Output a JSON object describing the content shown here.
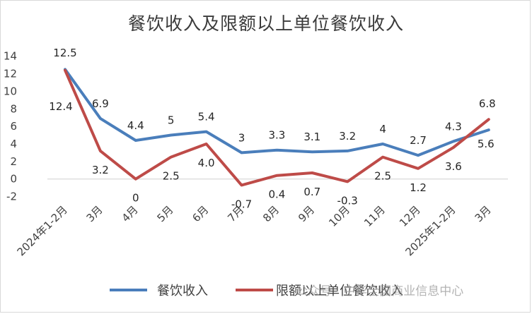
{
  "chart_data": {
    "type": "line",
    "title": "餐饮收入及限额以上单位餐饮收入",
    "categories": [
      "2024年1-2月",
      "3月",
      "4月",
      "5月",
      "6月",
      "7月",
      "8月",
      "9月",
      "10月",
      "11月",
      "12月",
      "2025年1-2月",
      "3月"
    ],
    "series": [
      {
        "name": "餐饮收入",
        "color": "#4a7ebb",
        "values": [
          12.5,
          6.9,
          4.4,
          5,
          5.4,
          3,
          3.3,
          3.1,
          3.2,
          4,
          2.7,
          4.3,
          5.6
        ],
        "labels": [
          "12.5",
          "6.9",
          "4.4",
          "5",
          "5.4",
          "3",
          "3.3",
          "3.1",
          "3.2",
          "4",
          "2.7",
          "4.3",
          "5.6"
        ]
      },
      {
        "name": "限额以上单位餐饮收入",
        "color": "#be4b48",
        "values": [
          12.4,
          3.2,
          0,
          2.5,
          4.0,
          -0.7,
          0.4,
          0.7,
          -0.3,
          2.5,
          1.2,
          3.6,
          6.8
        ],
        "labels": [
          "12.4",
          "3.2",
          "0",
          "2.5",
          "4.0",
          "-0.7",
          "0.4",
          "0.7",
          "-0.3",
          "2.5",
          "1.2",
          "3.6",
          "6.8"
        ]
      }
    ],
    "yticks": [
      "14",
      "12",
      "10",
      "8",
      "6",
      "4",
      "2",
      "0",
      "-2"
    ],
    "ylim": [
      -2,
      14
    ],
    "grid": false,
    "legend": "bottom"
  },
  "watermark": "公众号 · 中华全国商业信息中心"
}
